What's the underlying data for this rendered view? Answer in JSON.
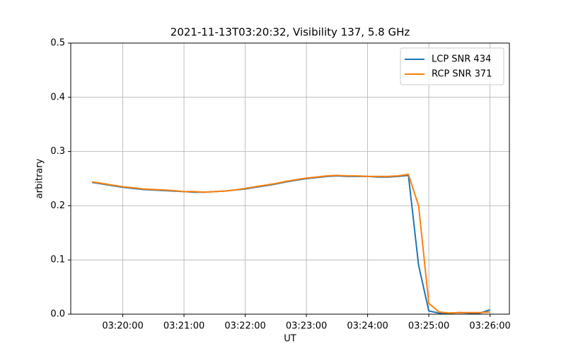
{
  "chart_data": {
    "type": "line",
    "title": "2021-11-13T03:20:32, Visibility 137, 5.8 GHz",
    "xlabel": "UT",
    "ylabel": "arbitrary",
    "x": [
      "03:19:30",
      "03:19:40",
      "03:19:50",
      "03:20:00",
      "03:20:10",
      "03:20:20",
      "03:20:30",
      "03:20:40",
      "03:20:50",
      "03:21:00",
      "03:21:10",
      "03:21:20",
      "03:21:30",
      "03:21:40",
      "03:21:50",
      "03:22:00",
      "03:22:10",
      "03:22:20",
      "03:22:30",
      "03:22:40",
      "03:22:50",
      "03:23:00",
      "03:23:10",
      "03:23:20",
      "03:23:30",
      "03:23:40",
      "03:23:50",
      "03:24:00",
      "03:24:10",
      "03:24:20",
      "03:24:30",
      "03:24:40",
      "03:24:50",
      "03:25:00",
      "03:25:10",
      "03:25:20",
      "03:25:30",
      "03:25:40",
      "03:25:50",
      "03:26:00"
    ],
    "series": [
      {
        "name": "LCP SNR 434",
        "color": "#1f77b4",
        "values": [
          0.243,
          0.24,
          0.237,
          0.234,
          0.232,
          0.23,
          0.229,
          0.228,
          0.227,
          0.226,
          0.225,
          0.225,
          0.226,
          0.227,
          0.229,
          0.231,
          0.234,
          0.237,
          0.24,
          0.244,
          0.247,
          0.25,
          0.252,
          0.254,
          0.255,
          0.254,
          0.254,
          0.254,
          0.253,
          0.253,
          0.254,
          0.256,
          0.09,
          0.006,
          0.002,
          0.002,
          0.003,
          0.002,
          0.002,
          0.008
        ]
      },
      {
        "name": "RCP SNR 371",
        "color": "#ff7f0e",
        "values": [
          0.244,
          0.241,
          0.238,
          0.235,
          0.233,
          0.231,
          0.23,
          0.229,
          0.228,
          0.226,
          0.226,
          0.225,
          0.226,
          0.227,
          0.229,
          0.232,
          0.235,
          0.238,
          0.241,
          0.245,
          0.248,
          0.251,
          0.253,
          0.255,
          0.256,
          0.255,
          0.255,
          0.254,
          0.254,
          0.254,
          0.255,
          0.258,
          0.2,
          0.02,
          0.004,
          0.002,
          0.003,
          0.003,
          0.003,
          0.004
        ]
      }
    ],
    "xlim": [
      "03:19:09",
      "03:26:19"
    ],
    "xticks": [
      "03:20:00",
      "03:21:00",
      "03:22:00",
      "03:23:00",
      "03:24:00",
      "03:25:00",
      "03:26:00"
    ],
    "ylim": [
      0,
      0.5
    ],
    "yticks": [
      {
        "value": 0,
        "label": "0.0"
      },
      0.1,
      0.2,
      0.3,
      0.4,
      0.5
    ],
    "grid": true,
    "legend": "upper right"
  }
}
